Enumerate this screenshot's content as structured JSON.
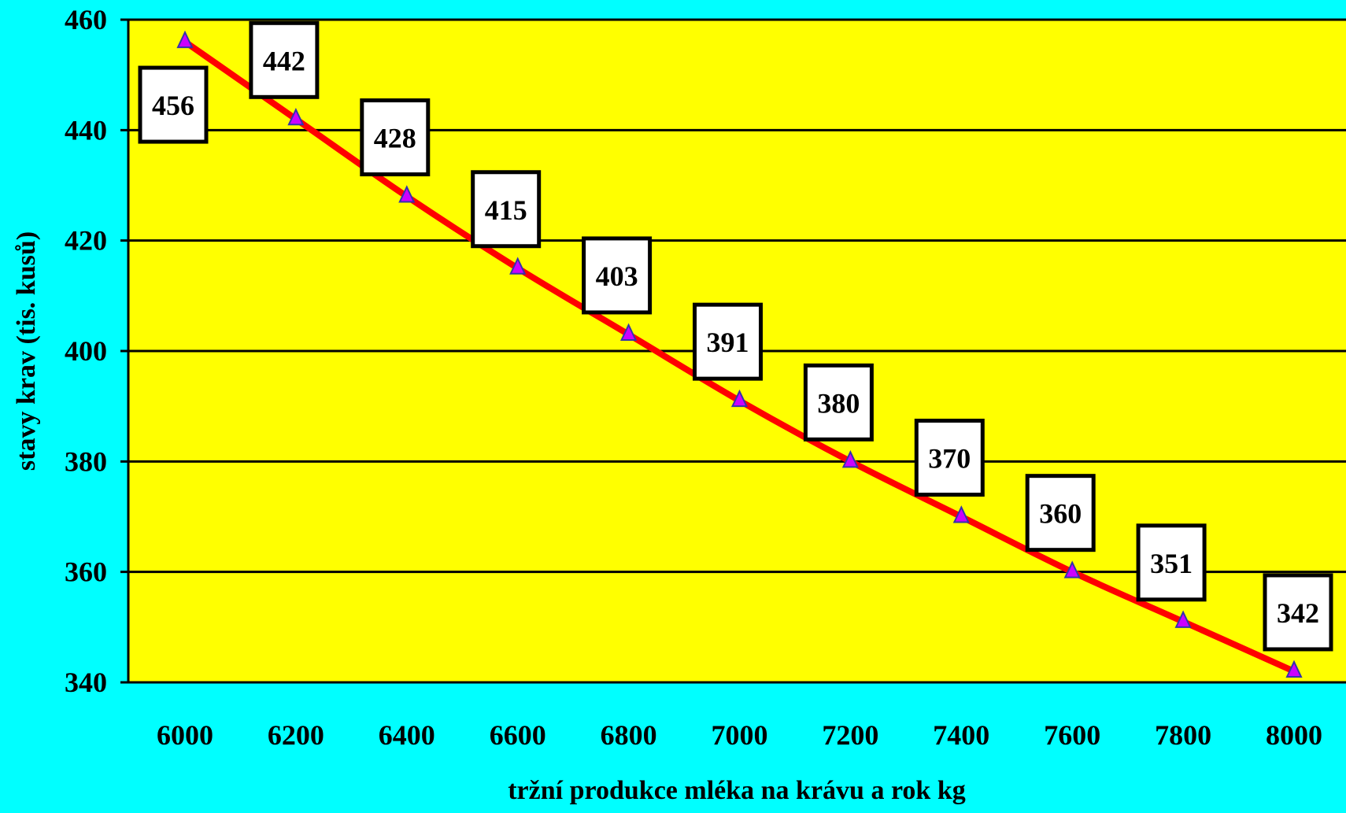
{
  "chart_data": {
    "type": "line",
    "title": "",
    "xlabel": "tržní produkce mléka na krávu a rok kg",
    "ylabel": "stavy krav (tis. kusů)",
    "x": [
      6000,
      6200,
      6400,
      6600,
      6800,
      7000,
      7200,
      7400,
      7600,
      7800,
      8000
    ],
    "x_tick_labels": [
      "6000",
      "6200",
      "6400",
      "6600",
      "6800",
      "7000",
      "7200",
      "7400",
      "7600",
      "7800",
      "8000"
    ],
    "series": [
      {
        "values": [
          456,
          442,
          428,
          415,
          403,
          391,
          380,
          370,
          360,
          351,
          342
        ],
        "data_labels": [
          "456",
          "442",
          "428",
          "415",
          "403",
          "391",
          "380",
          "370",
          "360",
          "351",
          "342"
        ],
        "line_color": "#FF0000",
        "marker": "triangle",
        "marker_color": "#CC00FF"
      }
    ],
    "ylim": [
      340,
      460
    ],
    "y_ticks": [
      340,
      360,
      380,
      400,
      420,
      440,
      460
    ],
    "y_tick_labels": [
      "340",
      "360",
      "380",
      "400",
      "420",
      "440",
      "460"
    ],
    "grid": "horizontal",
    "legend": "none",
    "colors": {
      "background": "#00FFFF",
      "plot_area": "#FFFF00",
      "gridline": "#000000",
      "label_box": "#FFFFFF"
    }
  }
}
